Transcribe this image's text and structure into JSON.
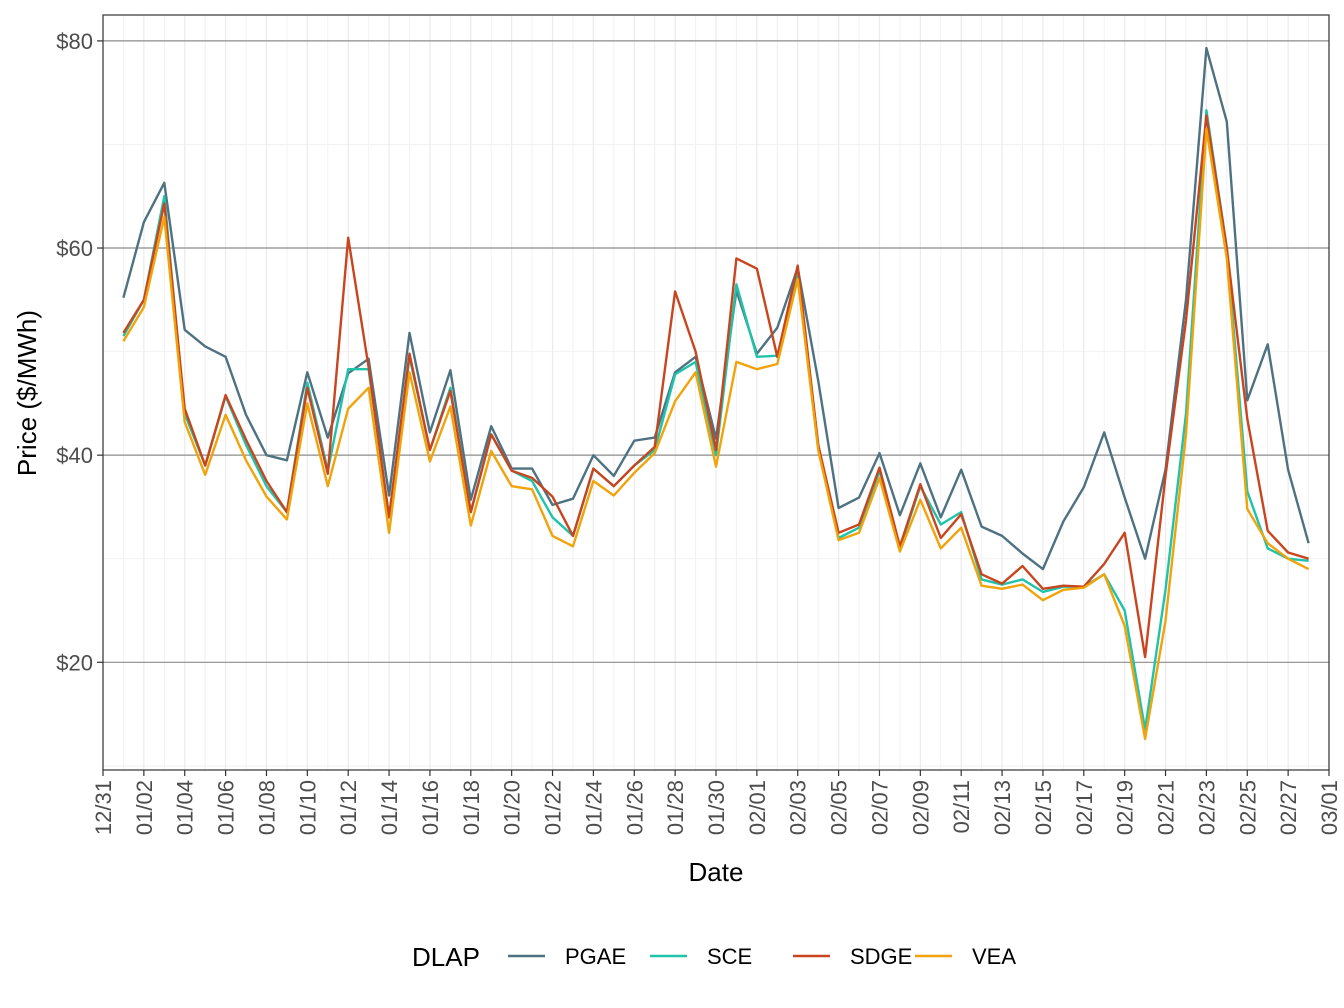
{
  "chart_data": {
    "type": "line",
    "x_label": "Date",
    "y_label": "Price ($/MWh)",
    "legend_title": "DLAP",
    "legend": "bottom",
    "grid": true,
    "x": [
      "01/01",
      "01/02",
      "01/03",
      "01/04",
      "01/05",
      "01/06",
      "01/07",
      "01/08",
      "01/09",
      "01/10",
      "01/11",
      "01/12",
      "01/13",
      "01/14",
      "01/15",
      "01/16",
      "01/17",
      "01/18",
      "01/19",
      "01/20",
      "01/21",
      "01/22",
      "01/23",
      "01/24",
      "01/25",
      "01/26",
      "01/27",
      "01/28",
      "01/29",
      "01/30",
      "01/31",
      "02/01",
      "02/02",
      "02/03",
      "02/04",
      "02/05",
      "02/06",
      "02/07",
      "02/08",
      "02/09",
      "02/10",
      "02/11",
      "02/12",
      "02/13",
      "02/14",
      "02/15",
      "02/16",
      "02/17",
      "02/18",
      "02/19",
      "02/20",
      "02/21",
      "02/22",
      "02/23",
      "02/24",
      "02/25",
      "02/26",
      "02/27",
      "02/28"
    ],
    "xlim": [
      "12/31",
      "03/01"
    ],
    "xticks": [
      "12/31",
      "01/02",
      "01/04",
      "01/06",
      "01/08",
      "01/10",
      "01/12",
      "01/14",
      "01/16",
      "01/18",
      "01/20",
      "01/22",
      "01/24",
      "01/26",
      "01/28",
      "01/30",
      "02/01",
      "02/03",
      "02/05",
      "02/07",
      "02/09",
      "02/11",
      "02/13",
      "02/15",
      "02/17",
      "02/19",
      "02/21",
      "02/23",
      "02/25",
      "02/27",
      "03/01"
    ],
    "ylim": [
      9.6,
      82.5
    ],
    "yticks": [
      {
        "value": 20,
        "label": "$20"
      },
      {
        "value": 40,
        "label": "$40"
      },
      {
        "value": 60,
        "label": "$60"
      },
      {
        "value": 80,
        "label": "$80"
      }
    ],
    "series": [
      {
        "name": "PGAE",
        "color": "#4e7282",
        "values": [
          55.2,
          62.5,
          66.3,
          52.1,
          50.5,
          49.5,
          43.9,
          40.0,
          39.5,
          48.0,
          41.7,
          47.9,
          49.3,
          36.1,
          51.8,
          42.2,
          48.2,
          35.7,
          42.8,
          38.7,
          38.7,
          35.2,
          35.8,
          40.0,
          38.0,
          41.4,
          41.7,
          48.0,
          49.5,
          41.6,
          55.9,
          49.8,
          52.3,
          58.1,
          47.2,
          34.9,
          35.9,
          40.2,
          34.2,
          39.2,
          34.0,
          38.6,
          33.1,
          32.2,
          30.5,
          29.0,
          33.6,
          36.9,
          42.2,
          35.9,
          30.0,
          38.6,
          55.0,
          79.3,
          72.2,
          45.3,
          50.7,
          38.6,
          31.5
        ]
      },
      {
        "name": "SCE",
        "color": "#1fc3aa",
        "values": [
          51.5,
          55,
          65,
          44,
          39,
          45.7,
          41,
          37,
          34.5,
          47,
          38.5,
          48.3,
          48.3,
          34,
          49.5,
          40.5,
          46.5,
          34.5,
          42,
          38.5,
          37.5,
          34,
          32.2,
          38.7,
          37,
          39,
          40.5,
          47.8,
          49,
          40,
          56.5,
          49.5,
          49.6,
          57.5,
          41,
          32,
          33,
          38.5,
          31,
          37,
          33.3,
          34.5,
          28,
          27.5,
          28,
          26.8,
          27.3,
          27.3,
          28.5,
          25,
          13.5,
          27,
          44,
          73.3,
          60,
          36.5,
          31,
          30,
          29.8
        ]
      },
      {
        "name": "SDGE",
        "color": "#c9451f",
        "values": [
          51.8,
          55,
          64.3,
          44.5,
          39,
          45.8,
          41.5,
          37.5,
          34.5,
          46.5,
          38.2,
          61,
          48.5,
          34,
          49.8,
          40.5,
          46.2,
          34.5,
          42,
          38.5,
          37.8,
          36,
          32.2,
          38.7,
          37,
          39,
          40.8,
          55.8,
          50,
          40.5,
          59,
          58,
          49.5,
          58.3,
          41,
          32.5,
          33.3,
          38.8,
          31.2,
          37.2,
          32,
          34.3,
          28.5,
          27.6,
          29.3,
          27.1,
          27.4,
          27.3,
          29.5,
          32.5,
          20.5,
          38,
          53,
          72.8,
          60,
          43.5,
          32.7,
          30.6,
          30
        ]
      },
      {
        "name": "VEA",
        "color": "#f0a30a",
        "values": [
          51,
          54.3,
          63,
          43.2,
          38.1,
          43.9,
          39.5,
          36,
          33.8,
          45,
          37,
          44.5,
          46.5,
          32.5,
          48,
          39.4,
          44.7,
          33.2,
          40.4,
          37,
          36.7,
          32.2,
          31.2,
          37.5,
          36.1,
          38.3,
          40.2,
          45.2,
          48,
          38.9,
          49,
          48.3,
          48.8,
          57,
          40.5,
          31.8,
          32.5,
          37.8,
          30.7,
          35.7,
          31,
          33,
          27.4,
          27.1,
          27.5,
          26,
          27,
          27.2,
          28.5,
          23.5,
          12.6,
          24,
          42,
          71.5,
          59,
          34.8,
          31.5,
          30,
          29
        ]
      }
    ]
  }
}
